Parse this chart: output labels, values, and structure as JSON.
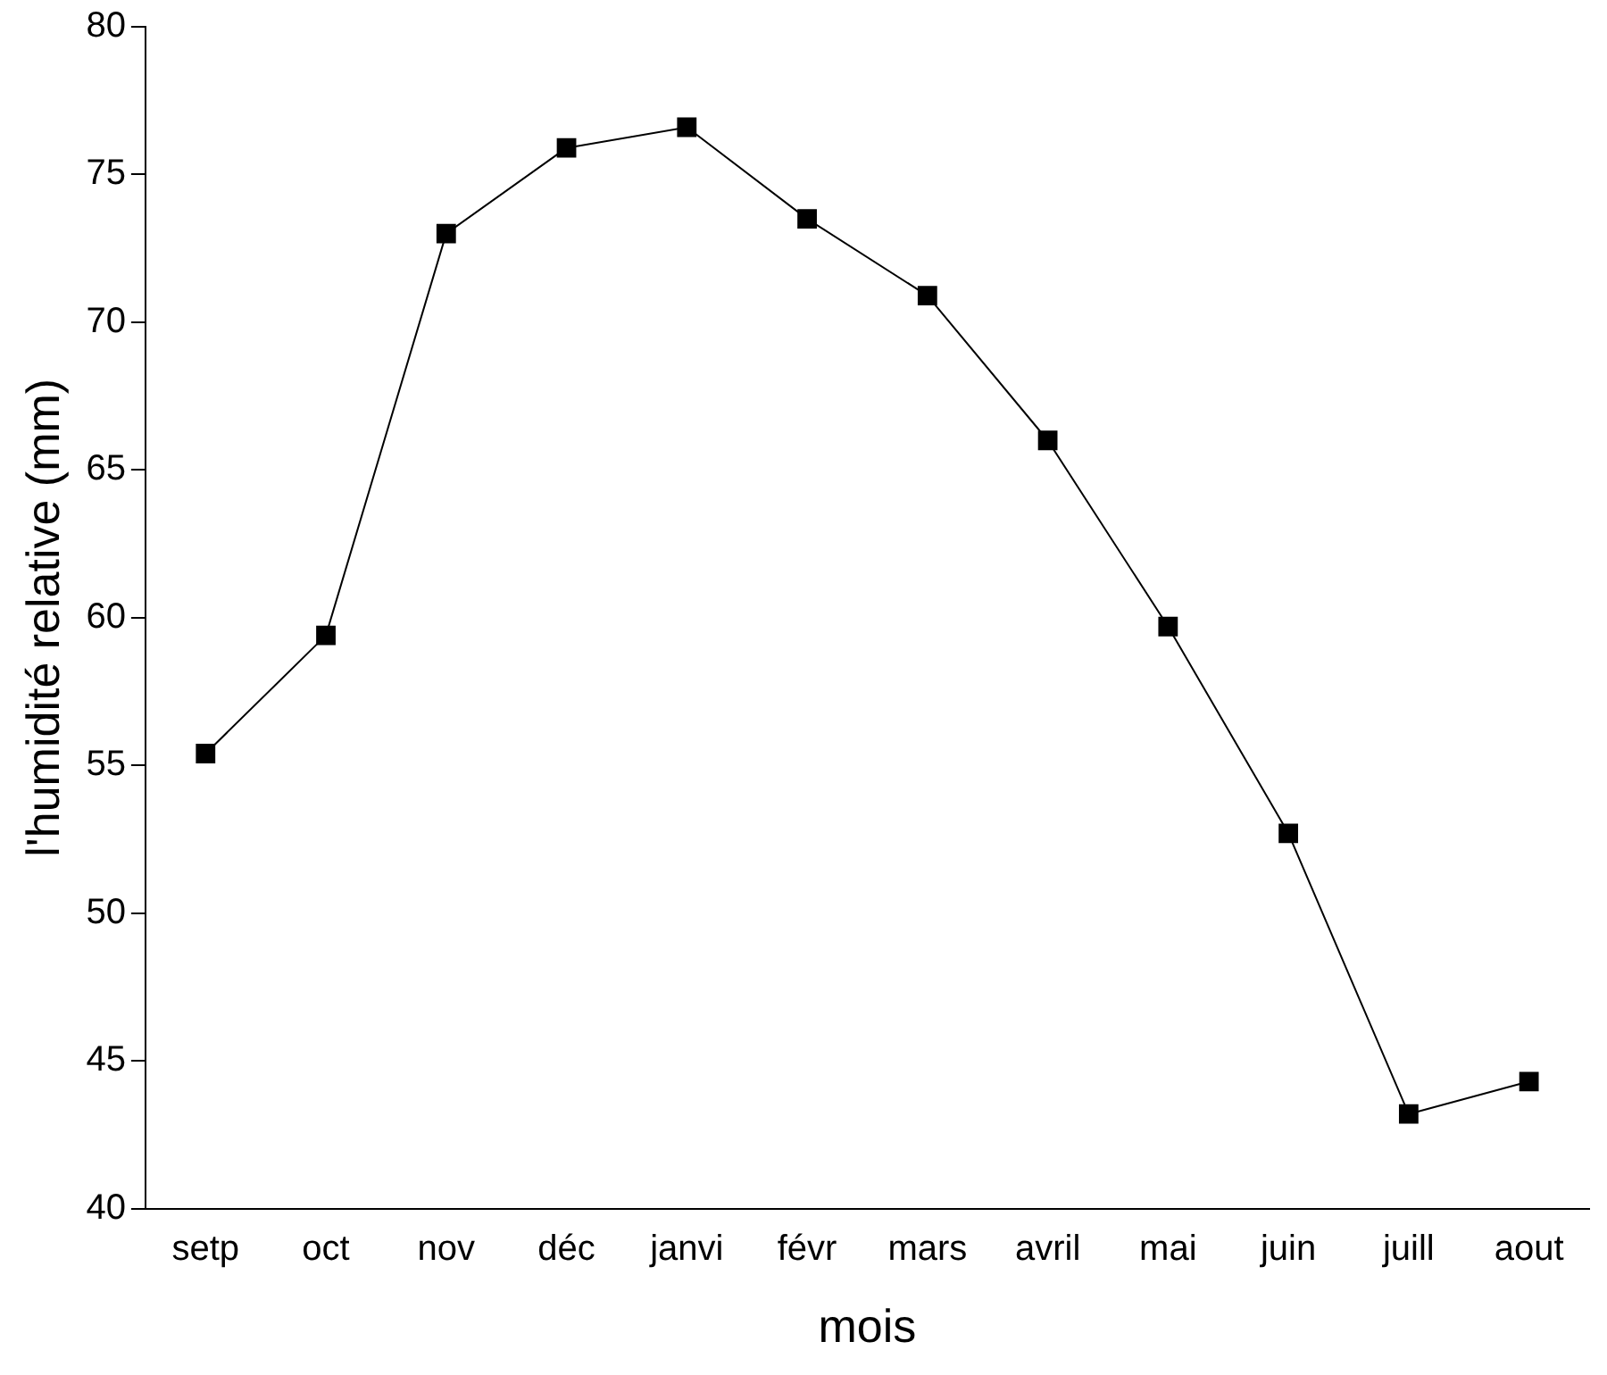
{
  "chart_data": {
    "type": "line",
    "xlabel": "mois",
    "ylabel": "l'humidité relative (mm)",
    "categories": [
      "setp",
      "oct",
      "nov",
      "déc",
      "janvi",
      "févr",
      "mars",
      "avril",
      "mai",
      "juin",
      "juill",
      "aout"
    ],
    "series": [
      {
        "color": "#000000",
        "values": [
          55.4,
          59.4,
          73.0,
          75.9,
          76.6,
          73.5,
          70.9,
          66.0,
          59.7,
          52.7,
          43.2,
          44.3
        ]
      }
    ],
    "ylim": [
      40,
      80
    ],
    "yticks": [
      40,
      45,
      50,
      55,
      60,
      65,
      70,
      75,
      80
    ],
    "grid": false,
    "legend": false,
    "marker": "square",
    "line_style": "solid"
  }
}
